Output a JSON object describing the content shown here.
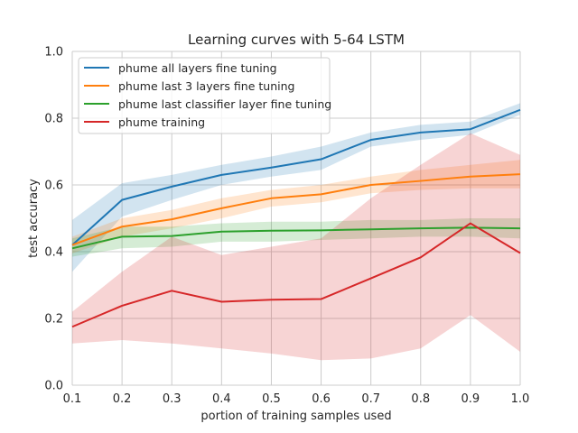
{
  "chart_data": {
    "type": "line",
    "title": "Learning curves with 5-64 LSTM",
    "xlabel": "portion of training samples used",
    "ylabel": "test accuracy",
    "xlim": [
      0.1,
      1.0
    ],
    "ylim": [
      0.0,
      1.0
    ],
    "x": [
      0.1,
      0.2,
      0.3,
      0.4,
      0.5,
      0.6,
      0.7,
      0.8,
      0.9,
      1.0
    ],
    "x_ticks": [
      "0.1",
      "0.2",
      "0.3",
      "0.4",
      "0.5",
      "0.6",
      "0.7",
      "0.8",
      "0.9",
      "1.0"
    ],
    "y_ticks": [
      "0.0",
      "0.2",
      "0.4",
      "0.6",
      "0.8",
      "1.0"
    ],
    "grid": true,
    "legend_position": "top-left",
    "series": [
      {
        "name": "phume all layers fine tuning",
        "color": "#1f77b4",
        "values": [
          0.42,
          0.555,
          0.595,
          0.63,
          0.652,
          0.677,
          0.735,
          0.757,
          0.767,
          0.825
        ],
        "lower": [
          0.34,
          0.505,
          0.555,
          0.6,
          0.625,
          0.645,
          0.715,
          0.735,
          0.75,
          0.81
        ],
        "upper": [
          0.495,
          0.605,
          0.63,
          0.66,
          0.685,
          0.715,
          0.757,
          0.78,
          0.79,
          0.845
        ]
      },
      {
        "name": "phume last 3 layers fine tuning",
        "color": "#ff7f0e",
        "values": [
          0.42,
          0.475,
          0.497,
          0.53,
          0.56,
          0.572,
          0.6,
          0.612,
          0.625,
          0.632
        ],
        "lower": [
          0.395,
          0.445,
          0.47,
          0.5,
          0.535,
          0.548,
          0.575,
          0.585,
          0.59,
          0.59
        ],
        "upper": [
          0.445,
          0.5,
          0.525,
          0.56,
          0.585,
          0.6,
          0.625,
          0.645,
          0.66,
          0.675
        ]
      },
      {
        "name": "phume last classifier layer fine tuning",
        "color": "#2ca02c",
        "values": [
          0.41,
          0.445,
          0.447,
          0.46,
          0.463,
          0.464,
          0.467,
          0.47,
          0.472,
          0.47
        ],
        "lower": [
          0.385,
          0.41,
          0.415,
          0.43,
          0.43,
          0.435,
          0.44,
          0.445,
          0.445,
          0.44
        ],
        "upper": [
          0.44,
          0.475,
          0.475,
          0.485,
          0.49,
          0.49,
          0.495,
          0.495,
          0.5,
          0.5
        ]
      },
      {
        "name": "phume training",
        "color": "#d62728",
        "values": [
          0.175,
          0.238,
          0.283,
          0.25,
          0.256,
          0.258,
          0.32,
          0.383,
          0.485,
          0.396
        ],
        "lower": [
          0.125,
          0.135,
          0.125,
          0.11,
          0.095,
          0.075,
          0.08,
          0.11,
          0.21,
          0.1
        ],
        "upper": [
          0.22,
          0.34,
          0.445,
          0.39,
          0.415,
          0.44,
          0.56,
          0.66,
          0.755,
          0.69
        ]
      }
    ]
  }
}
